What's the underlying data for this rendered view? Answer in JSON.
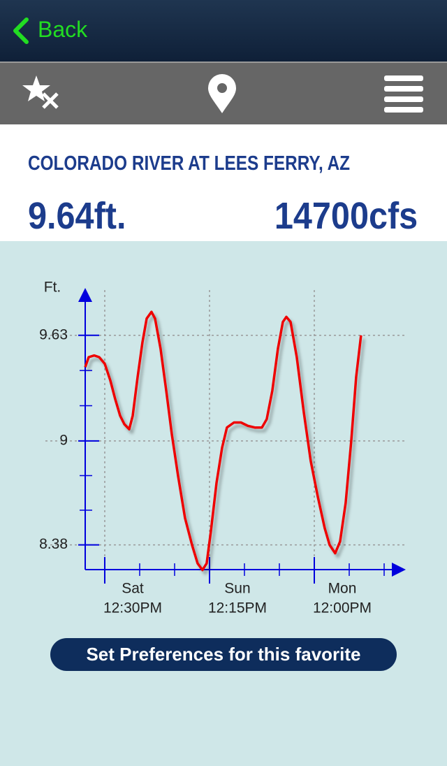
{
  "header": {
    "back": "Back"
  },
  "station": {
    "name": "COLORADO RIVER AT LEES FERRY, AZ",
    "stage": "9.64ft.",
    "flow": "14700cfs"
  },
  "button": "Set Preferences for this favorite",
  "chart_data": {
    "type": "line",
    "y_label": "Ft.",
    "color": "#ee0000",
    "grid": true,
    "x": [
      -4.43,
      -3.64,
      -2.37,
      -1.27,
      0,
      1.27,
      2.37,
      3.48,
      4.43,
      5.54,
      6.33,
      7.44,
      8.55,
      9.5,
      10.6,
      11.4,
      12.66,
      13.93,
      15.2,
      16.62,
      18.2,
      19.78,
      21.05,
      22.16,
      23.11,
      24.06,
      25.33,
      26.6,
      27.7,
      29.29,
      30.87,
      32.45,
      34.03,
      35.62,
      36.72,
      37.99,
      39.26,
      40.37,
      41.16,
      42.11,
      43.53,
      45.12,
      46.7,
      48.28,
      49.86,
      50.97,
      52.24,
      53.35,
      54.61,
      55.88,
      56.99,
      58.1
    ],
    "values": [
      9.44,
      9.5,
      9.51,
      9.5,
      9.46,
      9.36,
      9.25,
      9.15,
      9.1,
      9.07,
      9.15,
      9.38,
      9.59,
      9.73,
      9.77,
      9.73,
      9.55,
      9.3,
      9.04,
      8.79,
      8.54,
      8.38,
      8.27,
      8.23,
      8.27,
      8.46,
      8.75,
      8.96,
      9.08,
      9.11,
      9.11,
      9.09,
      9.08,
      9.08,
      9.13,
      9.3,
      9.55,
      9.71,
      9.74,
      9.71,
      9.5,
      9.17,
      8.88,
      8.67,
      8.48,
      8.38,
      8.33,
      8.4,
      8.63,
      9.0,
      9.38,
      9.63
    ],
    "xlim": [
      -4.43,
      66.5
    ],
    "ylim": [
      8.22,
      9.9
    ],
    "xticks": [
      {
        "value": 0,
        "label": "Sat",
        "time": "12:30PM"
      },
      {
        "value": 23.75,
        "label": "Sun",
        "time": "12:15PM"
      },
      {
        "value": 47.5,
        "label": "Mon",
        "time": "12:00PM"
      }
    ],
    "yticks": [
      8.38,
      9,
      9.63
    ]
  }
}
